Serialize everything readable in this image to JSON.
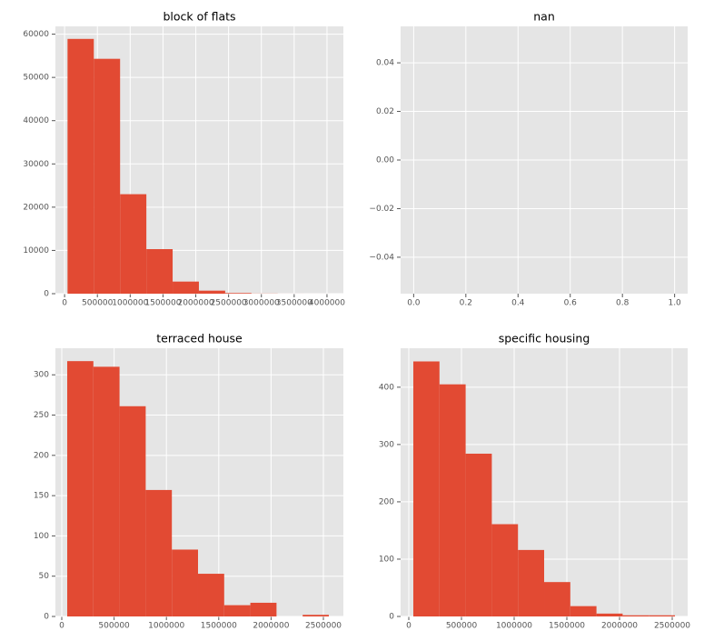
{
  "chart_data": [
    {
      "type": "hist",
      "title": "block of flats",
      "bins": [
        45000,
        445500,
        846000,
        1246500,
        1647000,
        2047500,
        2448000,
        2848500,
        3249000,
        3649500,
        4050000
      ],
      "counts": [
        58900,
        54300,
        23000,
        10300,
        2800,
        700,
        150,
        30,
        5,
        2
      ],
      "color": "#e24a33",
      "xlim": [
        -140000,
        4250000
      ],
      "ylim": [
        0,
        61800
      ],
      "xticks": [
        0,
        500000,
        1000000,
        1500000,
        2000000,
        2500000,
        3000000,
        3500000,
        4000000
      ],
      "yticks": [
        0,
        10000,
        20000,
        30000,
        40000,
        50000,
        60000
      ],
      "grid": true
    },
    {
      "type": "hist",
      "title": "nan",
      "xlim": [
        -0.05,
        1.05
      ],
      "ylim": [
        -0.055,
        0.055
      ],
      "xticks": [
        {
          "value": 0,
          "label": "0.0"
        },
        {
          "value": 0.2,
          "label": "0.2"
        },
        {
          "value": 0.4,
          "label": "0.4"
        },
        {
          "value": 0.6,
          "label": "0.6"
        },
        {
          "value": 0.8,
          "label": "0.8"
        },
        {
          "value": 1,
          "label": "1.0"
        }
      ],
      "yticks": [
        {
          "value": -0.04,
          "label": "−0.04"
        },
        {
          "value": -0.02,
          "label": "−0.02"
        },
        {
          "value": 0,
          "label": "0.00"
        },
        {
          "value": 0.02,
          "label": "0.02"
        },
        {
          "value": 0.04,
          "label": "0.04"
        }
      ],
      "grid": true
    },
    {
      "type": "hist",
      "title": "terraced house",
      "bins": [
        52000,
        302000,
        552000,
        802000,
        1052000,
        1302000,
        1552000,
        1802000,
        2052000,
        2302000,
        2552000
      ],
      "counts": [
        317,
        310,
        261,
        157,
        83,
        53,
        14,
        17,
        0,
        2
      ],
      "color": "#e24a33",
      "xlim": [
        -60800,
        2691000
      ],
      "ylim": [
        0,
        333
      ],
      "xticks": [
        0,
        500000,
        1000000,
        1500000,
        2000000,
        2500000
      ],
      "yticks": [
        0,
        50,
        100,
        150,
        200,
        250,
        300
      ],
      "grid": true
    },
    {
      "type": "hist",
      "title": "specific housing",
      "bins": [
        43000,
        291300,
        539600,
        787900,
        1036200,
        1284500,
        1532800,
        1781100,
        2029400,
        2277700,
        2526000
      ],
      "counts": [
        445,
        405,
        284,
        161,
        116,
        60,
        18,
        5,
        2,
        2
      ],
      "color": "#e24a33",
      "xlim": [
        -77600,
        2646500
      ],
      "ylim": [
        0,
        468
      ],
      "xticks": [
        0,
        500000,
        1000000,
        1500000,
        2000000,
        2500000
      ],
      "yticks": [
        0,
        100,
        200,
        300,
        400
      ],
      "grid": true
    }
  ]
}
